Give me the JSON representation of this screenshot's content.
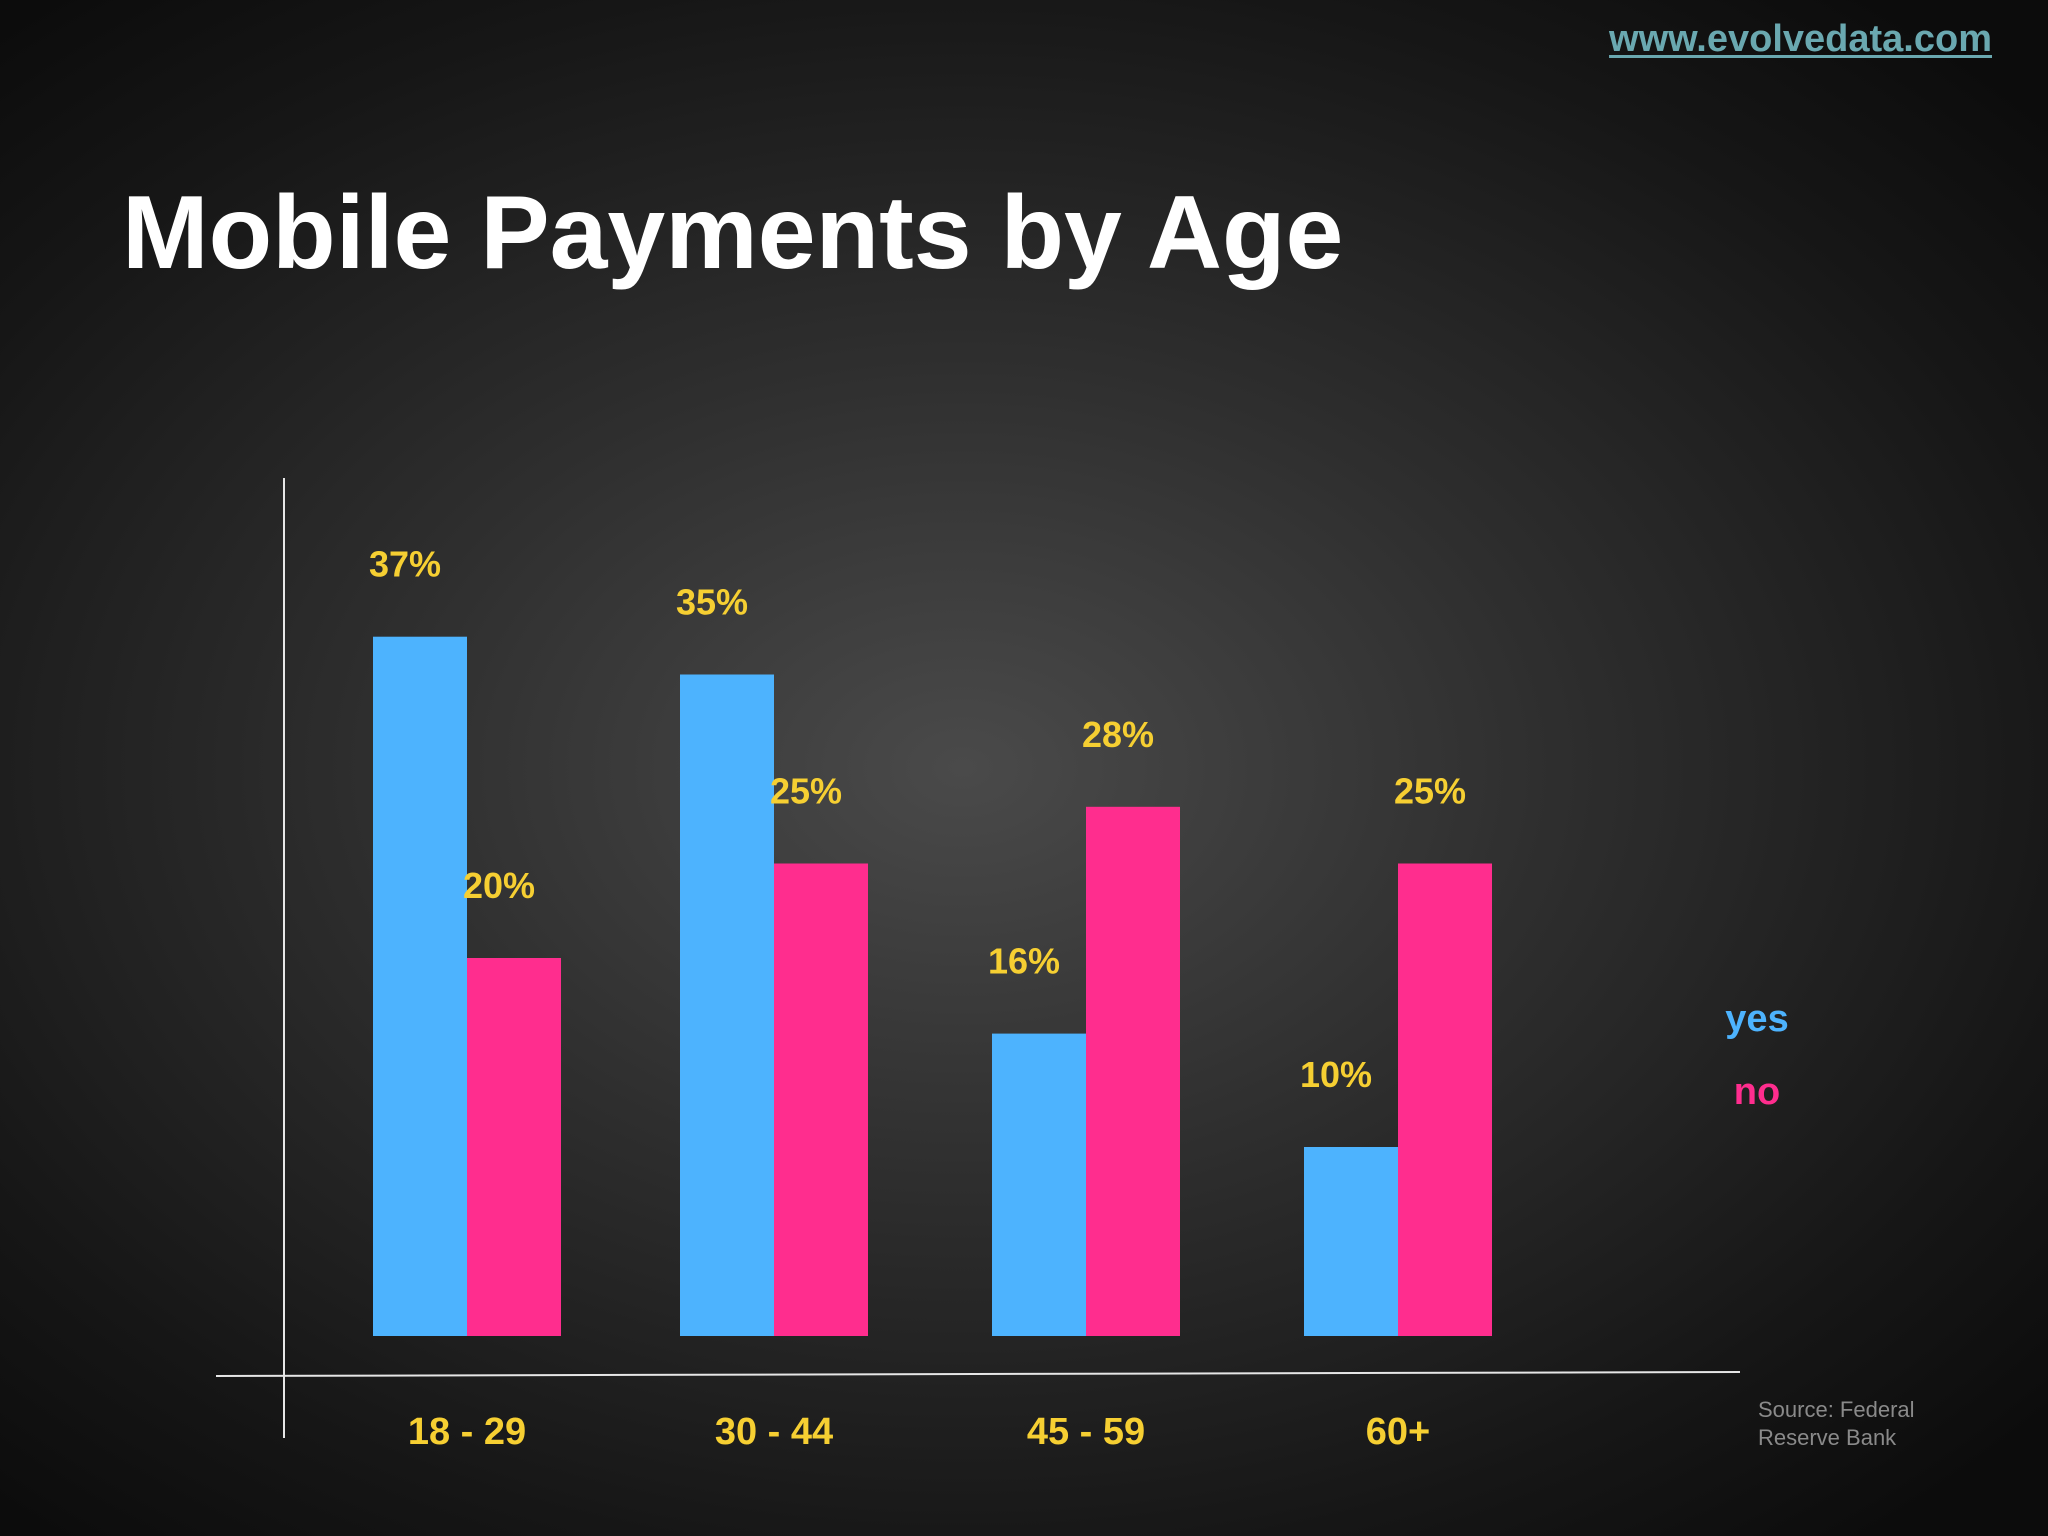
{
  "header": {
    "site_link": "www.evolvedata.com",
    "title": "Mobile Payments by Age"
  },
  "source_note": "Source: Federal Reserve Bank",
  "colors": {
    "yes": "#4db3fe",
    "no": "#ff2d8e",
    "value_labels": "#f6cf32",
    "category_labels": "#f6cf32",
    "axes": "#e6e6e6"
  },
  "chart_data": {
    "type": "bar",
    "title": "Mobile Payments by Age",
    "xlabel": "",
    "ylabel": "",
    "categories": [
      "18 - 29",
      "30 - 44",
      "45 - 59",
      "60+"
    ],
    "series": [
      {
        "name": "yes",
        "values": [
          37,
          35,
          16,
          10
        ]
      },
      {
        "name": "no",
        "values": [
          20,
          25,
          28,
          25
        ]
      }
    ],
    "value_labels": [
      [
        "37%",
        "35%",
        "16%",
        "10%"
      ],
      [
        "20%",
        "25%",
        "28%",
        "25%"
      ]
    ],
    "ylim": [
      0,
      40
    ],
    "grid": false,
    "legend": "right"
  }
}
